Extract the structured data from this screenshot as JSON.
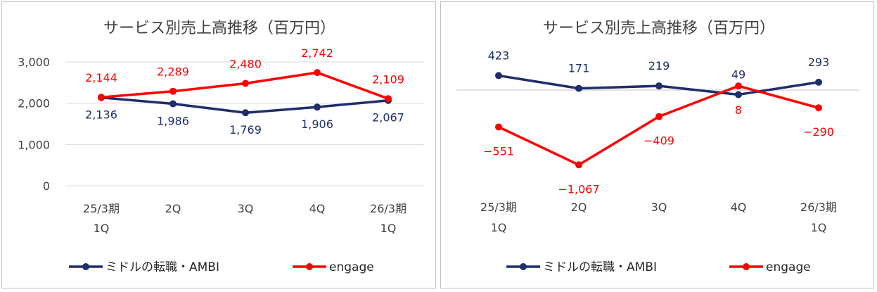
{
  "colors": {
    "ambi": "#1f2d6b",
    "engage": "#ff0000",
    "grid": "#d9d9d9",
    "text": "#404040"
  },
  "chart_data": [
    {
      "type": "line",
      "title": "サービス別売上高推移（百万円）",
      "categories": [
        [
          "25/3期",
          "1Q"
        ],
        [
          "2Q"
        ],
        [
          "3Q"
        ],
        [
          "4Q"
        ],
        [
          "26/3期",
          "1Q"
        ]
      ],
      "y_ticks": [
        "0",
        "1,000",
        "2,000",
        "3,000"
      ],
      "ylim": [
        0,
        3000
      ],
      "grid": true,
      "legend_position": "bottom",
      "series": [
        {
          "name": "ミドルの転職・AMBI",
          "values": [
            2136,
            1986,
            1769,
            1906,
            2067
          ],
          "labels": [
            "2,136",
            "1,986",
            "1,769",
            "1,906",
            "2,067"
          ]
        },
        {
          "name": "engage",
          "values": [
            2144,
            2289,
            2480,
            2742,
            2109
          ],
          "labels": [
            "2,144",
            "2,289",
            "2,480",
            "2,742",
            "2,109"
          ]
        }
      ]
    },
    {
      "type": "line",
      "title": "サービス別売上高推移（百万円）",
      "categories": [
        [
          "25/3期",
          "1Q"
        ],
        [
          "2Q"
        ],
        [
          "3Q"
        ],
        [
          "4Q"
        ],
        [
          "26/3期",
          "1Q"
        ]
      ],
      "grid": false,
      "zero_line": true,
      "legend_position": "bottom",
      "series": [
        {
          "name": "ミドルの転職・AMBI",
          "values": [
            423,
            171,
            219,
            49,
            293
          ],
          "labels": [
            "423",
            "171",
            "219",
            "49",
            "293"
          ]
        },
        {
          "name": "engage",
          "values": [
            -551,
            -1067,
            -409,
            8,
            -290
          ],
          "labels": [
            "−551",
            "−1,067",
            "−409",
            "8",
            "−290"
          ]
        }
      ]
    }
  ]
}
